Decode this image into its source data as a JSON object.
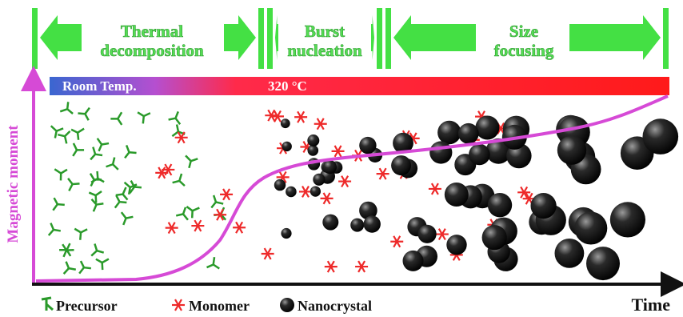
{
  "phases": [
    {
      "label_lines": [
        "Thermal",
        "decomposition"
      ]
    },
    {
      "label_lines": [
        "Burst",
        "nucleation"
      ]
    },
    {
      "label_lines": [
        "Size",
        "focusing"
      ]
    }
  ],
  "temperature": {
    "start": "Room Temp.",
    "end": "320 °C"
  },
  "axes": {
    "y_label": "Magnetic moment",
    "x_label": "Time"
  },
  "legend": [
    "Precursor",
    "Monomer",
    "Nanocrystal"
  ]
}
